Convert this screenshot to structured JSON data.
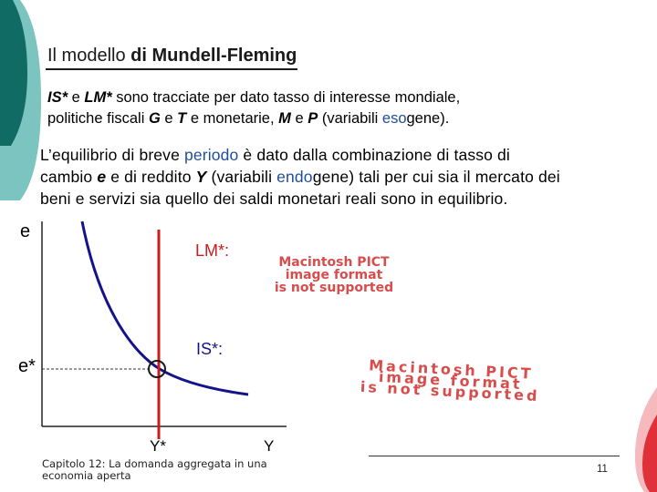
{
  "slide": {
    "title": {
      "part1": "Il modello ",
      "part2": "di Mundell-Fleming"
    },
    "para1": {
      "s1": "IS*",
      "s2": " e ",
      "s3": "LM*",
      "s4": " sono tracciate per dato tasso di interesse mondiale,",
      "s5": "politiche fiscali ",
      "s6": "G",
      "s7": " e ",
      "s8": "T",
      "s9": " e monetarie, ",
      "s10": "M",
      "s11": " e ",
      "s12": "P",
      "s13": " (variabili ",
      "s14": "eso",
      "s15": "gene)."
    },
    "para2": {
      "s1": "L’equilibrio di breve ",
      "s2": "periodo",
      "s3": " è dato dalla combinazione di tasso di",
      "s4": "cambio ",
      "s5": "e",
      "s6": " e di reddito ",
      "s7": "Y",
      "s8": " (variabili ",
      "s9": "endo",
      "s10": "gene) tali per cui sia il mercato dei",
      "s11": "beni e servizi sia quello dei saldi monetari reali sono in equilibrio."
    },
    "diagram": {
      "y_axis_label": "e",
      "x_axis_label": "Y",
      "lm_label": "LM*:",
      "is_label": "IS*:",
      "e_star_label": "e*",
      "y_star_label": "Y*",
      "pict_notice_1": [
        "Macintosh PICT",
        "image format",
        "is not supported"
      ],
      "pict_notice_2": [
        "Macintosh PICT",
        "image format",
        "is not supported"
      ]
    },
    "footer": {
      "chapter": "Capitolo 12: La domanda aggregata in una economia aperta",
      "page": "11"
    },
    "colors": {
      "curve": "#14148a",
      "vertical_line": "#cc1b1b",
      "decor_teal": "#0f6b63",
      "decor_red": "#e0313a"
    }
  }
}
